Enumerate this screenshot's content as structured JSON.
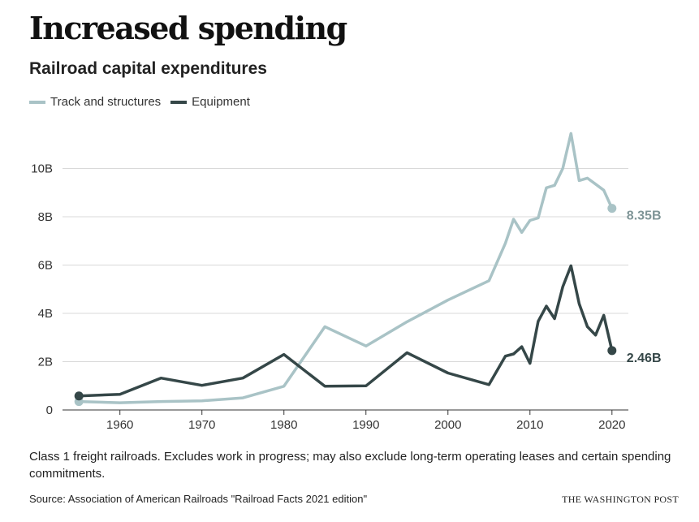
{
  "title": "Increased spending",
  "subtitle": "Railroad capital expenditures",
  "note": "Class 1 freight railroads. Excludes work in progress; may also exclude long-term operating leases and certain spending commitments.",
  "source": "Source: Association of American Railroads \"Railroad Facts 2021 edition\"",
  "credit": "THE WASHINGTON POST",
  "chart_data": {
    "type": "line",
    "title": "Increased spending",
    "subtitle": "Railroad capital expenditures",
    "xlabel": "",
    "ylabel": "",
    "xlim": [
      1955,
      2020
    ],
    "ylim": [
      0,
      11.6
    ],
    "x_ticks": [
      1960,
      1970,
      1980,
      1990,
      2000,
      2010,
      2020
    ],
    "x_tick_labels": [
      "1960",
      "1970",
      "1980",
      "1990",
      "2000",
      "2010",
      "2020"
    ],
    "y_ticks": [
      0,
      2,
      4,
      6,
      8,
      10
    ],
    "y_tick_labels": [
      "0",
      "2B",
      "4B",
      "6B",
      "8B",
      "10B"
    ],
    "grid": "horizontal",
    "legend_position": "top-left",
    "series": [
      {
        "name": "Track and structures",
        "color": "#a9c3c6",
        "end_label": "8.35B",
        "label_color": "#7f9597",
        "points": [
          [
            1955,
            0.35
          ],
          [
            1960,
            0.3
          ],
          [
            1965,
            0.35
          ],
          [
            1970,
            0.38
          ],
          [
            1975,
            0.5
          ],
          [
            1980,
            0.98
          ],
          [
            1985,
            3.45
          ],
          [
            1990,
            2.65
          ],
          [
            1995,
            3.65
          ],
          [
            2000,
            4.55
          ],
          [
            2005,
            5.35
          ],
          [
            2007,
            6.9
          ],
          [
            2008,
            7.9
          ],
          [
            2009,
            7.35
          ],
          [
            2010,
            7.85
          ],
          [
            2011,
            7.95
          ],
          [
            2012,
            9.2
          ],
          [
            2013,
            9.3
          ],
          [
            2014,
            10.0
          ],
          [
            2015,
            11.45
          ],
          [
            2016,
            9.5
          ],
          [
            2017,
            9.6
          ],
          [
            2018,
            9.35
          ],
          [
            2019,
            9.1
          ],
          [
            2020,
            8.35
          ]
        ]
      },
      {
        "name": "Equipment",
        "color": "#354748",
        "end_label": "2.46B",
        "label_color": "#354748",
        "points": [
          [
            1955,
            0.58
          ],
          [
            1960,
            0.65
          ],
          [
            1965,
            1.32
          ],
          [
            1970,
            1.02
          ],
          [
            1975,
            1.32
          ],
          [
            1980,
            2.3
          ],
          [
            1985,
            0.98
          ],
          [
            1990,
            1.0
          ],
          [
            1995,
            2.37
          ],
          [
            2000,
            1.53
          ],
          [
            2005,
            1.05
          ],
          [
            2007,
            2.23
          ],
          [
            2008,
            2.32
          ],
          [
            2009,
            2.62
          ],
          [
            2010,
            1.93
          ],
          [
            2011,
            3.67
          ],
          [
            2012,
            4.3
          ],
          [
            2013,
            3.78
          ],
          [
            2014,
            5.1
          ],
          [
            2015,
            5.97
          ],
          [
            2016,
            4.4
          ],
          [
            2017,
            3.45
          ],
          [
            2018,
            3.1
          ],
          [
            2019,
            3.92
          ],
          [
            2020,
            2.46
          ]
        ]
      }
    ]
  }
}
